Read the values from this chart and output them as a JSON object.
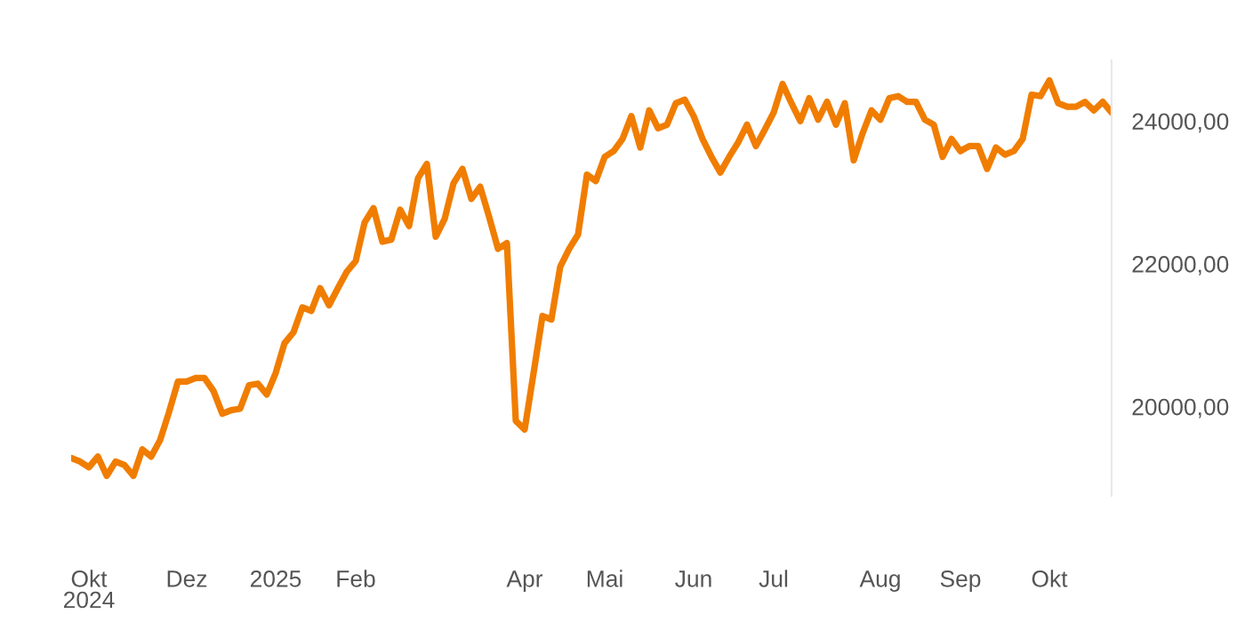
{
  "chart_data": {
    "type": "line",
    "categories": [
      null,
      null,
      "Okt\n2024",
      null,
      null,
      null,
      null,
      null,
      null,
      null,
      null,
      null,
      null,
      "Dez",
      null,
      null,
      null,
      null,
      null,
      null,
      null,
      null,
      null,
      "2025",
      null,
      null,
      null,
      null,
      null,
      null,
      null,
      null,
      "Feb",
      null,
      null,
      null,
      null,
      null,
      null,
      null,
      null,
      null,
      null,
      null,
      null,
      null,
      null,
      null,
      null,
      null,
      null,
      "Apr",
      null,
      null,
      null,
      null,
      null,
      null,
      null,
      null,
      "Mai",
      null,
      null,
      null,
      null,
      null,
      null,
      null,
      null,
      null,
      "Jun",
      null,
      null,
      null,
      null,
      null,
      null,
      null,
      null,
      "Jul",
      null,
      null,
      null,
      null,
      null,
      null,
      null,
      null,
      null,
      null,
      null,
      "Aug",
      null,
      null,
      null,
      null,
      null,
      null,
      null,
      null,
      "Sep",
      null,
      null,
      null,
      null,
      null,
      null,
      null,
      null,
      null,
      "Okt",
      null,
      null,
      null,
      null,
      null,
      null,
      null
    ],
    "series": [
      {
        "color": "#f07d00",
        "values": [
          19280,
          19230,
          19150,
          19300,
          19030,
          19230,
          19180,
          19030,
          19400,
          19300,
          19530,
          19920,
          20350,
          20350,
          20400,
          20400,
          20220,
          19900,
          19950,
          19970,
          20300,
          20320,
          20170,
          20470,
          20890,
          21040,
          21390,
          21340,
          21660,
          21420,
          21660,
          21890,
          22040,
          22580,
          22780,
          22310,
          22340,
          22760,
          22530,
          23200,
          23400,
          22380,
          22630,
          23130,
          23330,
          22910,
          23080,
          22660,
          22210,
          22290,
          19800,
          19680,
          20470,
          21270,
          21220,
          21960,
          22210,
          22410,
          23250,
          23160,
          23500,
          23580,
          23750,
          24070,
          23630,
          24150,
          23900,
          23950,
          24250,
          24300,
          24070,
          23750,
          23500,
          23280,
          23500,
          23700,
          23950,
          23650,
          23880,
          24120,
          24520,
          24250,
          24000,
          24320,
          24020,
          24270,
          23950,
          24250,
          23450,
          23830,
          24150,
          24020,
          24320,
          24350,
          24270,
          24270,
          24020,
          23950,
          23500,
          23750,
          23580,
          23650,
          23650,
          23330,
          23630,
          23530,
          23580,
          23750,
          24370,
          24350,
          24570,
          24250,
          24200,
          24200,
          24270,
          24150,
          24270,
          24120
        ]
      }
    ],
    "ylim": [
      18750,
      24850
    ],
    "yticks": [
      {
        "value": 20000,
        "label": "20000,00"
      },
      {
        "value": 22000,
        "label": "22000,00"
      },
      {
        "value": 24000,
        "label": "24000,00"
      }
    ],
    "grid": false,
    "legend": false,
    "marker": "none",
    "line_style": "solid"
  }
}
